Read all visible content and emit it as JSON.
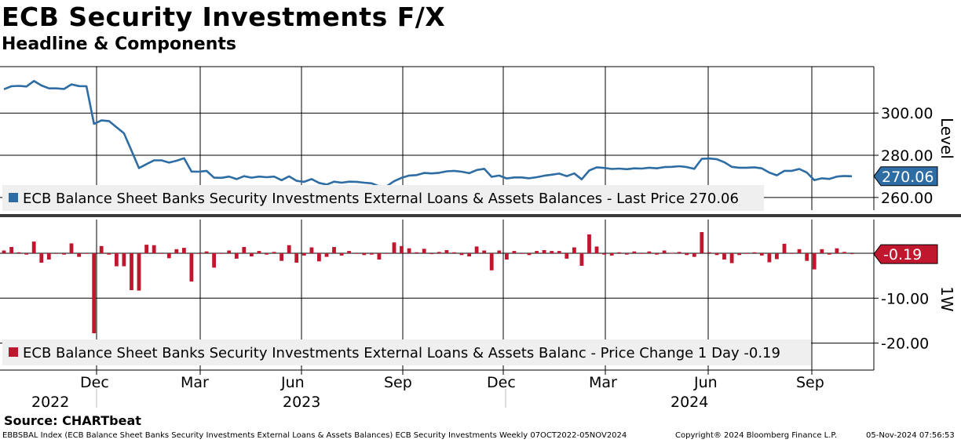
{
  "header": {
    "title": "ECB Security Investments F/X",
    "subtitle": "Headline & Components"
  },
  "footer": {
    "source": "Source: CHARTbeat",
    "ticker_info": "EBBSBAL Index (ECB Balance Sheet Banks Security Investments External Loans & Assets Balances) ECB Security Investments  Weekly 07OCT2022-05NOV2024",
    "copyright": "Copyright® 2024 Bloomberg Finance L.P.",
    "timestamp": "05-Nov-2024 07:56:53"
  },
  "colors": {
    "level_line": "#2e6ca4",
    "change_bar": "#c0172f",
    "grid": "#000000",
    "legend_bg": "#efefef"
  },
  "chart_data": [
    {
      "type": "line",
      "panel": "top",
      "axis_label": "Level",
      "yticks": [
        300.0,
        280.0,
        260.0
      ],
      "ytick_labels": [
        "300.00",
        "280.00",
        "260.00"
      ],
      "ylim": [
        254,
        322
      ],
      "last_value_label": "270.06",
      "legend": "ECB Balance Sheet Banks Security Investments External Loans & Assets Balances - Last Price 270.06",
      "series": [
        {
          "name": "ECB Balance Sheet Banks Security Investments External Loans & Assets Balances",
          "values": [
            311.3,
            312.7,
            312.9,
            312.6,
            315.2,
            313.1,
            311.7,
            311.7,
            311.4,
            313.6,
            312.8,
            312.7,
            294.9,
            296.5,
            296.2,
            293.3,
            290.4,
            282.2,
            273.9,
            275.8,
            277.6,
            277.6,
            276.5,
            277.4,
            278.6,
            272.3,
            272.2,
            272.6,
            269.4,
            269.3,
            269.9,
            268.7,
            270.1,
            269.4,
            269.9,
            269.6,
            269.9,
            268.2,
            270.0,
            267.9,
            267.4,
            268.7,
            266.9,
            266.1,
            267.5,
            267.0,
            267.5,
            267.4,
            267.0,
            266.7,
            265.3,
            265.3,
            267.7,
            269.3,
            270.4,
            270.6,
            271.6,
            271.4,
            271.7,
            272.4,
            272.6,
            272.2,
            271.5,
            273.0,
            273.6,
            269.8,
            270.4,
            269.0,
            269.5,
            269.5,
            269.1,
            269.6,
            270.3,
            270.8,
            271.3,
            270.1,
            271.4,
            268.6,
            272.8,
            274.3,
            274.0,
            273.5,
            273.7,
            273.4,
            273.8,
            273.7,
            274.1,
            273.8,
            274.4,
            274.5,
            274.8,
            274.4,
            273.6,
            278.3,
            278.5,
            278.1,
            276.7,
            274.5,
            274.1,
            274.1,
            274.3,
            273.8,
            271.8,
            270.5,
            272.6,
            272.6,
            273.5,
            271.8,
            268.2,
            269.1,
            268.8,
            269.9,
            270.2,
            270.06
          ]
        }
      ]
    },
    {
      "type": "bar",
      "panel": "bottom",
      "axis_label": "1W",
      "yticks": [
        -10.0,
        -20.0
      ],
      "ytick_labels": [
        "-10.00",
        "-20.00"
      ],
      "ylim": [
        -26,
        7.5
      ],
      "last_value_label": "-0.19",
      "legend": "ECB Balance Sheet Banks Security Investments External Loans & Assets Balanc - Price Change 1 Day -0.19",
      "series": [
        {
          "name": "ECB Balance Sheet Banks Security Investments External Loans & Assets Balanc",
          "values": [
            0.6,
            1.4,
            0.2,
            -0.3,
            2.6,
            -2.1,
            -1.4,
            0.0,
            -0.3,
            2.2,
            -0.8,
            -0.1,
            -17.8,
            1.6,
            -0.3,
            -2.9,
            -2.9,
            -8.2,
            -8.3,
            1.9,
            1.8,
            0.0,
            -1.1,
            0.9,
            1.2,
            -6.3,
            -0.1,
            0.4,
            -3.2,
            -0.1,
            0.6,
            -1.2,
            1.4,
            -0.7,
            0.5,
            -0.3,
            0.3,
            -1.7,
            1.8,
            -2.1,
            -0.5,
            1.3,
            -1.8,
            -0.8,
            1.4,
            -0.5,
            0.5,
            -0.1,
            -0.4,
            -0.3,
            -1.4,
            0.0,
            2.4,
            1.6,
            1.1,
            0.2,
            1.0,
            -0.2,
            0.3,
            0.7,
            0.2,
            -0.4,
            -0.7,
            1.5,
            0.6,
            -3.8,
            0.6,
            -1.4,
            0.5,
            0.0,
            -0.4,
            0.5,
            0.7,
            0.5,
            0.5,
            -1.2,
            1.3,
            -2.8,
            4.2,
            1.5,
            -0.3,
            -0.5,
            0.2,
            -0.3,
            0.4,
            -0.1,
            0.4,
            -0.3,
            0.6,
            0.1,
            0.3,
            -0.4,
            -0.8,
            4.7,
            0.2,
            -0.4,
            -1.4,
            -2.2,
            -0.4,
            0.0,
            0.2,
            -0.5,
            -2.0,
            -1.3,
            2.1,
            0.0,
            0.9,
            -1.7,
            -3.6,
            0.9,
            -0.3,
            1.1,
            0.3,
            -0.19
          ]
        }
      ]
    }
  ],
  "x_axis": {
    "month_ticks": [
      "Dec",
      "Mar",
      "Jun",
      "Sep",
      "Dec",
      "Mar",
      "Jun",
      "Sep"
    ],
    "year_labels": [
      "2022",
      "2023",
      "2024"
    ]
  }
}
